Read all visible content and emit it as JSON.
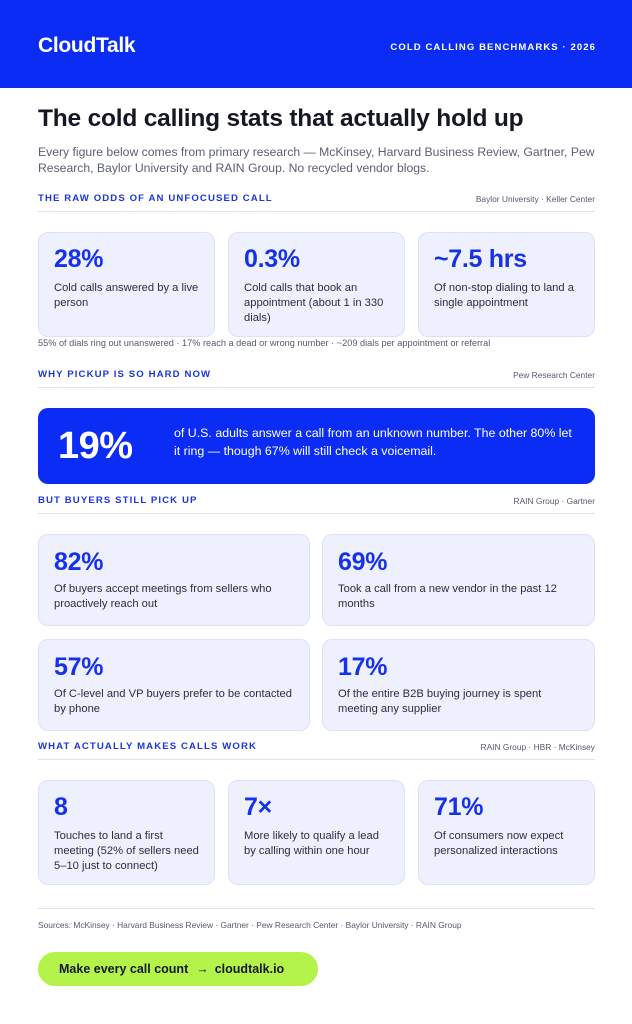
{
  "header": {
    "logo": "CloudTalk",
    "tag": "COLD CALLING BENCHMARKS · 2026"
  },
  "title": "The cold calling stats that actually hold up",
  "intro": "Every figure below comes from primary research — McKinsey, Harvard Business Review, Gartner, Pew Research, Baylor University and RAIN Group. No recycled vendor blogs.",
  "sections": {
    "odds": {
      "title": "THE RAW ODDS OF AN UNFOCUSED CALL",
      "source": "Baylor University · Keller Center",
      "cards": [
        {
          "num": "28%",
          "label": "Cold calls answered by a live person"
        },
        {
          "num": "0.3%",
          "label": "Cold calls that book an appointment (about 1 in 330 dials)"
        },
        {
          "num": "~7.5 hrs",
          "label": "Of non-stop dialing to land a single appointment"
        }
      ],
      "note": "55% of dials ring out unanswered · 17% reach a dead or wrong number · ~209 dials per appointment or referral"
    },
    "pickup": {
      "title": "WHY PICKUP IS SO HARD NOW",
      "source": "Pew Research Center",
      "hero_num": "19%",
      "hero_text": "of U.S. adults answer a call from an unknown number. The other 80% let it ring — though 67% will still check a voicemail."
    },
    "buyers": {
      "title": "BUT BUYERS STILL PICK UP",
      "source": "RAIN Group · Gartner",
      "cards": [
        {
          "num": "82%",
          "label": "Of buyers accept meetings from sellers who proactively reach out"
        },
        {
          "num": "69%",
          "label": "Took a call from a new vendor in the past 12 months"
        },
        {
          "num": "57%",
          "label": "Of C-level and VP buyers prefer to be contacted by phone"
        },
        {
          "num": "17%",
          "label": "Of the entire B2B buying journey is spent meeting any supplier"
        }
      ]
    },
    "works": {
      "title": "WHAT ACTUALLY MAKES CALLS WORK",
      "source": "RAIN Group · HBR · McKinsey",
      "cards": [
        {
          "num": "8",
          "label": "Touches to land a first meeting (52% of sellers need 5–10 just to connect)"
        },
        {
          "num": "7×",
          "label": "More likely to qualify a lead by calling within one hour"
        },
        {
          "num": "71%",
          "label": "Of consumers now expect personalized interactions"
        }
      ]
    }
  },
  "footer": {
    "sources": "Sources: McKinsey · Harvard Business Review · Gartner · Pew Research Center · Baylor University · RAIN Group",
    "cta_left": "Make every call count",
    "cta_arrow": "→",
    "cta_right": "cloudtalk.io"
  },
  "colors": {
    "brand_blue": "#0a2cf5",
    "accent_text_blue": "#1532ea",
    "card_bg": "#eef0fd",
    "cta_green": "#b4f34a"
  }
}
